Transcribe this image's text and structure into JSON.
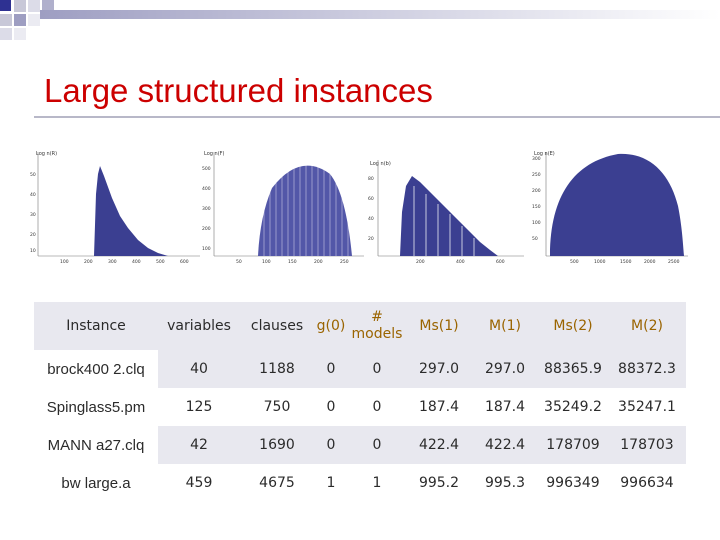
{
  "slide": {
    "title": "Large structured instances",
    "colors": {
      "title": "#cc0000",
      "plot_fill": "#3b3f91",
      "accent": "#9a6400"
    }
  },
  "plots": [
    {
      "ylabel": "Log n(R)",
      "x_ticks": [
        "100",
        "200",
        "300",
        "400",
        "500",
        "600"
      ],
      "y_ticks": [
        "50",
        "40",
        "30",
        "20",
        "10"
      ]
    },
    {
      "ylabel": "Log n(F)",
      "x_ticks": [
        "50",
        "100",
        "150",
        "200",
        "250"
      ],
      "y_ticks": [
        "500",
        "400",
        "300",
        "200",
        "100"
      ]
    },
    {
      "ylabel": "Log n(b)",
      "x_ticks": [
        "200",
        "400",
        "600"
      ],
      "y_ticks": [
        "80",
        "60",
        "40",
        "20"
      ]
    },
    {
      "ylabel": "Log n(E)",
      "x_ticks": [
        "500",
        "1000",
        "1500",
        "2000",
        "2500"
      ],
      "y_ticks": [
        "300",
        "250",
        "200",
        "150",
        "100",
        "50"
      ]
    }
  ],
  "table": {
    "headers": {
      "instance": "Instance",
      "variables": "variables",
      "clauses": "clauses",
      "g0": "g(0)",
      "models_hash": "#",
      "models": "models",
      "ms1": "Ms(1)",
      "m1": "M(1)",
      "ms2": "Ms(2)",
      "m2": "M(2)"
    },
    "rows": [
      {
        "instance": "brock400 2.clq",
        "variables": "40",
        "clauses": "1188",
        "g0": "0",
        "models": "0",
        "ms1": "297.0",
        "m1": "297.0",
        "ms2": "88365.9",
        "m2": "88372.3"
      },
      {
        "instance": "Spinglass5.pm",
        "variables": "125",
        "clauses": "750",
        "g0": "0",
        "models": "0",
        "ms1": "187.4",
        "m1": "187.4",
        "ms2": "35249.2",
        "m2": "35247.1"
      },
      {
        "instance": "MANN a27.clq",
        "variables": "42",
        "clauses": "1690",
        "g0": "0",
        "models": "0",
        "ms1": "422.4",
        "m1": "422.4",
        "ms2": "178709",
        "m2": "178703"
      },
      {
        "instance": "bw large.a",
        "variables": "459",
        "clauses": "4675",
        "g0": "1",
        "models": "1",
        "ms1": "995.2",
        "m1": "995.3",
        "ms2": "996349",
        "m2": "996634"
      }
    ]
  }
}
